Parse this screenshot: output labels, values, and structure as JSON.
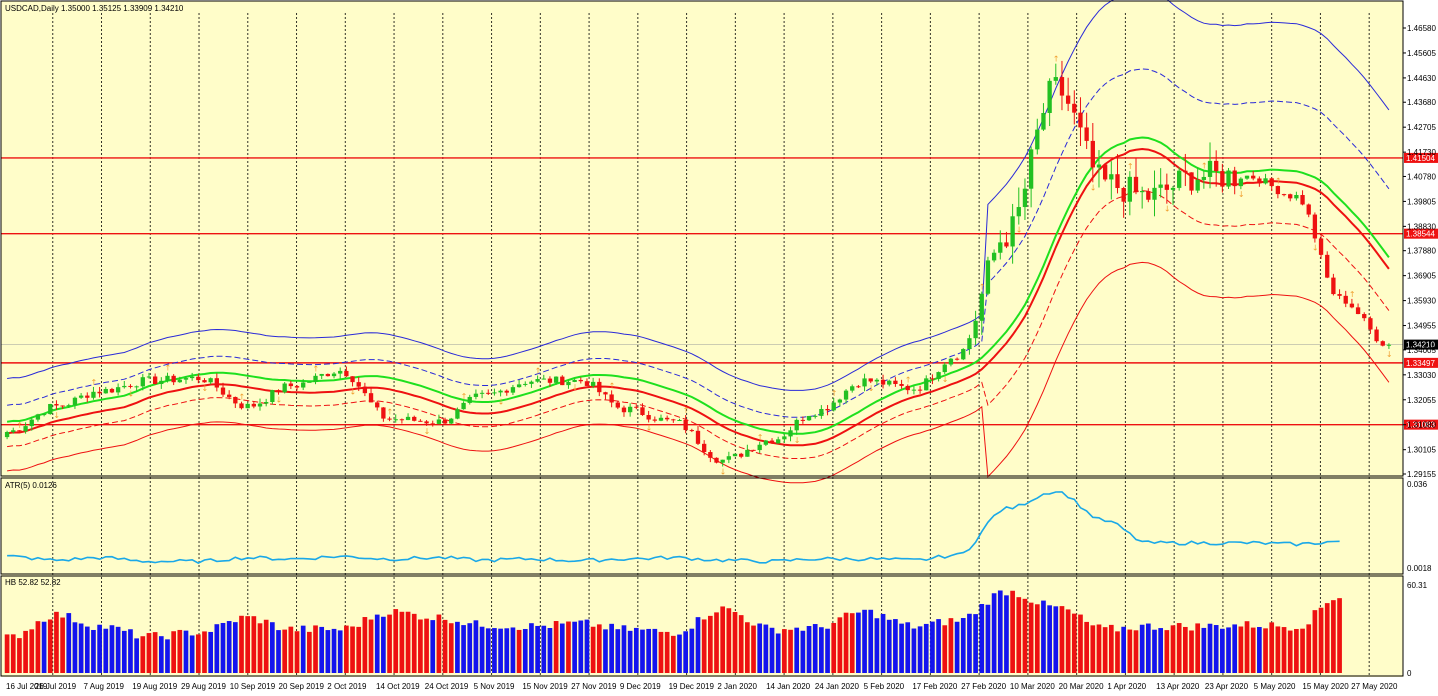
{
  "main": {
    "title": "USDCAD,Daily  1.35000 1.35125 1.33909 1.34210",
    "price_ticks": [
      "1.46580",
      "1.45605",
      "1.44630",
      "1.43680",
      "1.42705",
      "1.41730",
      "1.40780",
      "1.39805",
      "1.38830",
      "1.37880",
      "1.36905",
      "1.35930",
      "1.34955",
      "1.34005",
      "1.33030",
      "1.32055",
      "1.31080",
      "1.30105",
      "1.29155"
    ],
    "current_price": "1.34210",
    "hlines": [
      {
        "label": "1.41504",
        "value": 1.41504
      },
      {
        "label": "1.38544",
        "value": 1.38544
      },
      {
        "label": "1.33497",
        "value": 1.33497
      },
      {
        "label": "1.31083",
        "value": 1.31083
      }
    ]
  },
  "atr": {
    "title": "ATR(5) 0.0126",
    "ticks": [
      "0.036",
      "0.0018"
    ]
  },
  "hb": {
    "title": "HB 52.82 52.82",
    "ticks": [
      "60.31",
      "0"
    ]
  },
  "x_labels": [
    "16 Jul 2019",
    "26 Jul 2019",
    "7 Aug 2019",
    "19 Aug 2019",
    "29 Aug 2019",
    "10 Sep 2019",
    "20 Sep 2019",
    "2 Oct 2019",
    "14 Oct 2019",
    "24 Oct 2019",
    "5 Nov 2019",
    "15 Nov 2019",
    "27 Nov 2019",
    "9 Dec 2019",
    "19 Dec 2019",
    "2 Jan 2020",
    "14 Jan 2020",
    "24 Jan 2020",
    "5 Feb 2020",
    "17 Feb 2020",
    "27 Feb 2020",
    "10 Mar 2020",
    "20 Mar 2020",
    "1 Apr 2020",
    "13 Apr 2020",
    "23 Apr 2020",
    "5 May 2020",
    "15 May 2020",
    "27 May 2020"
  ],
  "colors": {
    "background": "#fffdc9",
    "bull": "#22c022",
    "bear": "#ee1111",
    "band_blue": "#2a2ad8",
    "ma_green": "#1ee01e",
    "ma_red": "#ee1111",
    "atr_line": "#1aa8e8",
    "hline": "#ee1111",
    "hb_red": "#ee1111",
    "hb_blue": "#1414ee",
    "fractal": "#f0a030"
  },
  "chart_data": [
    {
      "type": "candlestick",
      "title": "USDCAD,Daily  1.35000 1.35125 1.33909 1.34210",
      "x_range": [
        "16 Jul 2019",
        "29 May 2020"
      ],
      "ylim": [
        1.29,
        1.472
      ],
      "horizontal_levels": [
        1.41504,
        1.38544,
        1.33497,
        1.31083
      ],
      "close_approx": [
        {
          "date": "16 Jul 2019",
          "close": 1.308
        },
        {
          "date": "26 Jul 2019",
          "close": 1.318
        },
        {
          "date": "7 Aug 2019",
          "close": 1.324
        },
        {
          "date": "19 Aug 2019",
          "close": 1.328
        },
        {
          "date": "29 Aug 2019",
          "close": 1.329
        },
        {
          "date": "10 Sep 2019",
          "close": 1.318
        },
        {
          "date": "20 Sep 2019",
          "close": 1.326
        },
        {
          "date": "2 Oct 2019",
          "close": 1.332
        },
        {
          "date": "14 Oct 2019",
          "close": 1.313
        },
        {
          "date": "24 Oct 2019",
          "close": 1.312
        },
        {
          "date": "5 Nov 2019",
          "close": 1.322
        },
        {
          "date": "15 Nov 2019",
          "close": 1.328
        },
        {
          "date": "27 Nov 2019",
          "close": 1.328
        },
        {
          "date": "9 Dec 2019",
          "close": 1.317
        },
        {
          "date": "19 Dec 2019",
          "close": 1.312
        },
        {
          "date": "2 Jan 2020",
          "close": 1.297
        },
        {
          "date": "14 Jan 2020",
          "close": 1.305
        },
        {
          "date": "24 Jan 2020",
          "close": 1.316
        },
        {
          "date": "5 Feb 2020",
          "close": 1.328
        },
        {
          "date": "17 Feb 2020",
          "close": 1.325
        },
        {
          "date": "27 Feb 2020",
          "close": 1.338
        },
        {
          "date": "10 Mar 2020",
          "close": 1.385
        },
        {
          "date": "20 Mar 2020",
          "close": 1.442
        },
        {
          "date": "1 Apr 2020",
          "close": 1.405
        },
        {
          "date": "13 Apr 2020",
          "close": 1.4
        },
        {
          "date": "23 Apr 2020",
          "close": 1.408
        },
        {
          "date": "5 May 2020",
          "close": 1.408
        },
        {
          "date": "15 May 2020",
          "close": 1.4
        },
        {
          "date": "27 May 2020",
          "close": 1.36
        },
        {
          "date": "29 May 2020",
          "close": 1.3421
        }
      ]
    },
    {
      "type": "line",
      "title": "ATR(5) 0.0126",
      "ylim": [
        0.0018,
        0.036
      ],
      "x": [
        "16 Jul 2019",
        "26 Jul 2019",
        "7 Aug 2019",
        "19 Aug 2019",
        "29 Aug 2019",
        "10 Sep 2019",
        "20 Sep 2019",
        "2 Oct 2019",
        "14 Oct 2019",
        "24 Oct 2019",
        "5 Nov 2019",
        "15 Nov 2019",
        "27 Nov 2019",
        "9 Dec 2019",
        "19 Dec 2019",
        "2 Jan 2020",
        "14 Jan 2020",
        "24 Jan 2020",
        "5 Feb 2020",
        "17 Feb 2020",
        "27 Feb 2020",
        "10 Mar 2020",
        "20 Mar 2020",
        "1 Apr 2020",
        "13 Apr 2020",
        "23 Apr 2020",
        "5 May 2020",
        "15 May 2020",
        "27 May 2020"
      ],
      "values": [
        0.0065,
        0.005,
        0.006,
        0.0045,
        0.0045,
        0.006,
        0.0055,
        0.0065,
        0.0055,
        0.006,
        0.005,
        0.0055,
        0.0048,
        0.0055,
        0.006,
        0.005,
        0.0045,
        0.0055,
        0.0055,
        0.005,
        0.007,
        0.026,
        0.033,
        0.021,
        0.012,
        0.012,
        0.012,
        0.0115,
        0.0126
      ]
    },
    {
      "type": "bar",
      "title": "HB 52.82 52.82",
      "ylim": [
        0,
        60.31
      ],
      "x": [
        "16 Jul 2019",
        "26 Jul 2019",
        "7 Aug 2019",
        "19 Aug 2019",
        "29 Aug 2019",
        "10 Sep 2019",
        "20 Sep 2019",
        "2 Oct 2019",
        "14 Oct 2019",
        "24 Oct 2019",
        "5 Nov 2019",
        "15 Nov 2019",
        "27 Nov 2019",
        "9 Dec 2019",
        "19 Dec 2019",
        "2 Jan 2020",
        "14 Jan 2020",
        "24 Jan 2020",
        "5 Feb 2020",
        "17 Feb 2020",
        "27 Feb 2020",
        "10 Mar 2020",
        "20 Mar 2020",
        "1 Apr 2020",
        "13 Apr 2020",
        "23 Apr 2020",
        "5 May 2020",
        "15 May 2020",
        "27 May 2020"
      ],
      "values": [
        24,
        40,
        32,
        25,
        28,
        38,
        30,
        30,
        42,
        38,
        33,
        32,
        34,
        30,
        28,
        44,
        30,
        31,
        42,
        32,
        36,
        56,
        45,
        30,
        32,
        32,
        33,
        32,
        52.82
      ]
    }
  ]
}
